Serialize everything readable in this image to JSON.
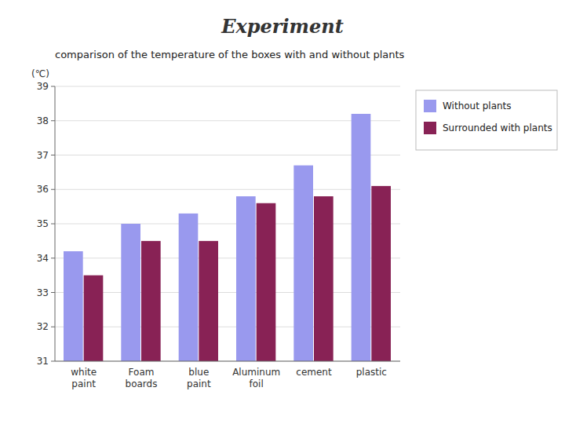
{
  "chart_data": {
    "type": "bar",
    "title": "Experiment",
    "subtitle": "comparison of the temperature of the boxes with and without plants",
    "y_label": "(℃)",
    "categories": [
      "white\npaint",
      "Foam\nboards",
      "blue\npaint",
      "Aluminum\nfoil",
      "cement",
      "plastic"
    ],
    "series": [
      {
        "name": "Without plants",
        "color": "#9999EE",
        "values": [
          34.2,
          35.0,
          35.3,
          35.8,
          36.7,
          38.2
        ]
      },
      {
        "name": "Surrounded with plants",
        "color": "#882255",
        "values": [
          33.5,
          34.5,
          34.5,
          35.6,
          35.8,
          36.1
        ]
      }
    ],
    "ylim": [
      31,
      39
    ],
    "yticks": [
      31,
      32,
      33,
      34,
      35,
      36,
      37,
      38,
      39
    ],
    "grid": true,
    "legend": "right"
  }
}
